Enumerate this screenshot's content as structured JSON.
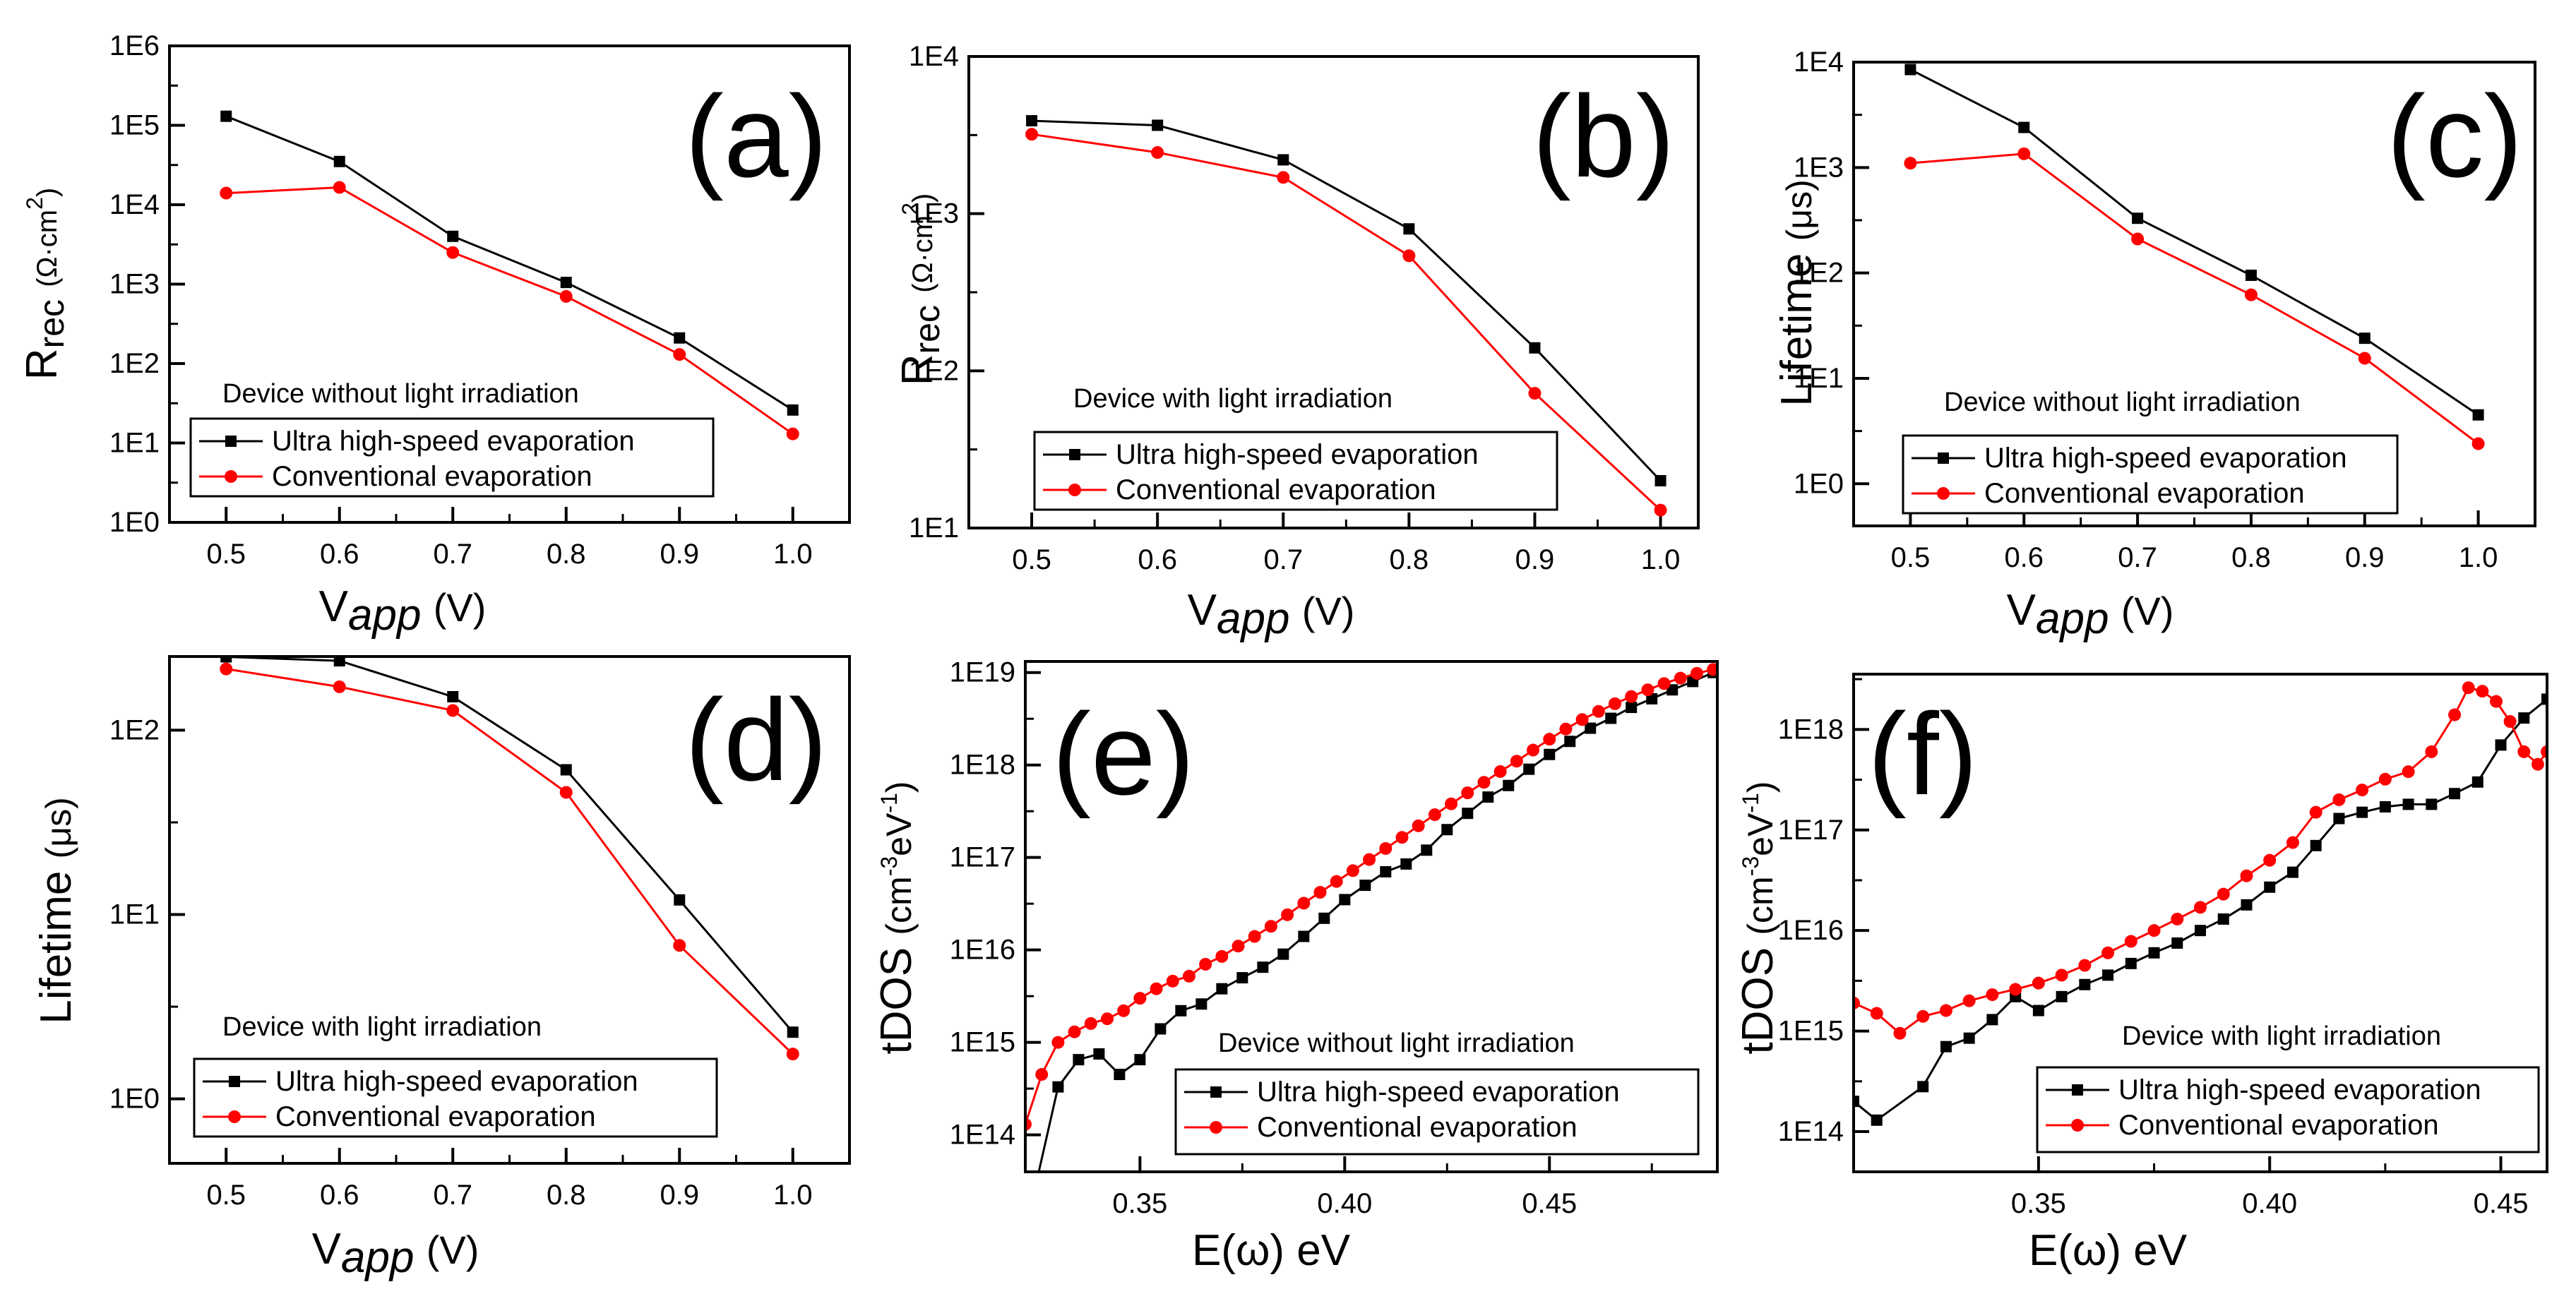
{
  "colors": {
    "ultra": "#000000",
    "conventional": "#ff0000",
    "axis": "#000000"
  },
  "chart_data": [
    {
      "type": "line",
      "panel": "(a)",
      "log_y": true,
      "ylim_exp": [
        0,
        6
      ],
      "y_tick_exps": [
        0,
        1,
        2,
        3,
        4,
        5,
        6
      ],
      "y_tick_labels": [
        "1E0",
        "1E1",
        "1E2",
        "1E3",
        "1E4",
        "1E5",
        "1E6"
      ],
      "xlim": [
        0.45,
        1.05
      ],
      "x_ticks": [
        0.5,
        0.6,
        0.7,
        0.8,
        0.9,
        1.0
      ],
      "x_tick_labels": [
        "0.5",
        "0.6",
        "0.7",
        "0.8",
        "0.9",
        "1.0"
      ],
      "ylabel_main": "R",
      "ylabel_sub": "rec",
      "ylabel_unit": "(Ω·cm",
      "ylabel_sup": "2",
      "ylabel_close": ")",
      "xlabel_main": "V",
      "xlabel_sub": "app",
      "xlabel_unit": "(V)",
      "annotation": "Device without light irradiation",
      "series": [
        {
          "name": "Ultra high-speed evaporation",
          "key": "ultra",
          "marker": "square",
          "x": [
            0.5,
            0.6,
            0.7,
            0.8,
            0.9,
            1.0
          ],
          "y": [
            130000,
            35000,
            4000,
            1050,
            210,
            26
          ]
        },
        {
          "name": "Conventional evaporation",
          "key": "conventional",
          "marker": "circle",
          "x": [
            0.5,
            0.6,
            0.7,
            0.8,
            0.9,
            1.0
          ],
          "y": [
            14000,
            16500,
            2500,
            700,
            130,
            13
          ]
        }
      ]
    },
    {
      "type": "line",
      "panel": "(b)",
      "log_y": true,
      "ylim_exp": [
        1,
        4
      ],
      "y_tick_exps": [
        1,
        2,
        3,
        4
      ],
      "y_tick_labels": [
        "1E1",
        "1E2",
        "1E3",
        "1E4"
      ],
      "xlim": [
        0.45,
        1.03
      ],
      "x_ticks": [
        0.5,
        0.6,
        0.7,
        0.8,
        0.9,
        1.0
      ],
      "x_tick_labels": [
        "0.5",
        "0.6",
        "0.7",
        "0.8",
        "0.9",
        "1.0"
      ],
      "ylabel_main": "R",
      "ylabel_sub": "rec",
      "ylabel_unit": "(Ω·cm",
      "ylabel_sup": "2",
      "ylabel_close": ")",
      "xlabel_main": "V",
      "xlabel_sub": "app",
      "xlabel_unit": "(V)",
      "annotation": "Device with light irradiation",
      "series": [
        {
          "name": "Ultra high-speed evaporation",
          "key": "ultra",
          "marker": "square",
          "x": [
            0.5,
            0.6,
            0.7,
            0.8,
            0.9,
            1.0
          ],
          "y": [
            3900,
            3650,
            2200,
            800,
            140,
            20
          ]
        },
        {
          "name": "Conventional evaporation",
          "key": "conventional",
          "marker": "circle",
          "x": [
            0.5,
            0.6,
            0.7,
            0.8,
            0.9,
            1.0
          ],
          "y": [
            3200,
            2450,
            1700,
            540,
            72,
            13
          ]
        }
      ]
    },
    {
      "type": "line",
      "panel": "(c)",
      "log_y": true,
      "ylim_exp": [
        -0.4,
        4
      ],
      "y_tick_exps": [
        0,
        1,
        2,
        3,
        4
      ],
      "y_tick_labels": [
        "1E0",
        "1E1",
        "1E2",
        "1E3",
        "1E4"
      ],
      "xlim": [
        0.45,
        1.05
      ],
      "x_ticks": [
        0.5,
        0.6,
        0.7,
        0.8,
        0.9,
        1.0
      ],
      "x_tick_labels": [
        "0.5",
        "0.6",
        "0.7",
        "0.8",
        "0.9",
        "1.0"
      ],
      "ylabel_main": "Lifetime",
      "ylabel_sub": "",
      "ylabel_unit": "(μs)",
      "ylabel_sup": "",
      "ylabel_close": "",
      "xlabel_main": "V",
      "xlabel_sub": "app",
      "xlabel_unit": "(V)",
      "annotation": "Device without light irradiation",
      "series": [
        {
          "name": "Ultra high-speed evaporation",
          "key": "ultra",
          "marker": "square",
          "x": [
            0.5,
            0.6,
            0.7,
            0.8,
            0.9,
            1.0
          ],
          "y": [
            8500,
            2400,
            330,
            95,
            24,
            4.5
          ]
        },
        {
          "name": "Conventional evaporation",
          "key": "conventional",
          "marker": "circle",
          "x": [
            0.5,
            0.6,
            0.7,
            0.8,
            0.9,
            1.0
          ],
          "y": [
            1100,
            1350,
            210,
            62,
            15.5,
            2.4
          ]
        }
      ]
    },
    {
      "type": "line",
      "panel": "(d)",
      "log_y": true,
      "ylim_exp": [
        -0.35,
        2.4
      ],
      "y_tick_exps": [
        0,
        1,
        2
      ],
      "y_tick_labels": [
        "1E0",
        "1E1",
        "1E2"
      ],
      "xlim": [
        0.45,
        1.05
      ],
      "x_ticks": [
        0.5,
        0.6,
        0.7,
        0.8,
        0.9,
        1.0
      ],
      "x_tick_labels": [
        "0.5",
        "0.6",
        "0.7",
        "0.8",
        "0.9",
        "1.0"
      ],
      "ylabel_main": "Lifetime",
      "ylabel_sub": "",
      "ylabel_unit": "(μs)",
      "ylabel_sup": "",
      "ylabel_close": "",
      "xlabel_main": "V",
      "xlabel_sub": "app",
      "xlabel_unit": "(V)",
      "annotation": "Device with light irradiation",
      "series": [
        {
          "name": "Ultra high-speed evaporation",
          "key": "ultra",
          "marker": "square",
          "x": [
            0.5,
            0.6,
            0.7,
            0.8,
            0.9,
            1.0
          ],
          "y": [
            250,
            238,
            152,
            61,
            12,
            2.3
          ]
        },
        {
          "name": "Conventional evaporation",
          "key": "conventional",
          "marker": "circle",
          "x": [
            0.5,
            0.6,
            0.7,
            0.8,
            0.9,
            1.0
          ],
          "y": [
            215,
            172,
            128,
            46,
            6.8,
            1.75
          ]
        }
      ]
    },
    {
      "type": "line",
      "panel": "(e)",
      "log_y": true,
      "ylim_exp": [
        13.6,
        19.12
      ],
      "y_tick_exps": [
        14,
        15,
        16,
        17,
        18,
        19
      ],
      "y_tick_labels": [
        "1E14",
        "1E15",
        "1E16",
        "1E17",
        "1E18",
        "1E19"
      ],
      "xlim": [
        0.322,
        0.491
      ],
      "x_ticks": [
        0.35,
        0.4,
        0.45
      ],
      "x_tick_labels": [
        "0.35",
        "0.40",
        "0.45"
      ],
      "ylabel_main": "tDOS",
      "ylabel_sub": "",
      "ylabel_unit": "(cm",
      "ylabel_sup": "-3",
      "ylabel_unit2": "eV",
      "ylabel_sup2": "-1",
      "ylabel_close": ")",
      "xlabel_main": "E(ω) eV",
      "xlabel_sub": "",
      "xlabel_unit": "",
      "annotation": "Device without light irradiation",
      "series": [
        {
          "name": "Ultra high-speed evaporation",
          "key": "ultra",
          "marker": "square",
          "x": [
            0.325,
            0.33,
            0.335,
            0.34,
            0.345,
            0.35,
            0.355,
            0.36,
            0.365,
            0.37,
            0.375,
            0.38,
            0.385,
            0.39,
            0.395,
            0.4,
            0.405,
            0.41,
            0.415,
            0.42,
            0.425,
            0.43,
            0.435,
            0.44,
            0.445,
            0.45,
            0.455,
            0.46,
            0.465,
            0.47,
            0.475,
            0.48,
            0.485,
            0.49
          ],
          "y": [
            35000000000000.0,
            330000000000000.0,
            650000000000000.0,
            750000000000000.0,
            450000000000000.0,
            650000000000000.0,
            1400000000000000.0,
            2200000000000000.0,
            2600000000000000.0,
            3800000000000000.0,
            5000000000000000.0,
            6500000000000000.0,
            9000000000000000.0,
            1.4e+16,
            2.2e+16,
            3.5e+16,
            5e+16,
            7e+16,
            8.5e+16,
            1.2e+17,
            2e+17,
            3e+17,
            4.5e+17,
            6e+17,
            9e+17,
            1.3e+18,
            1.8e+18,
            2.5e+18,
            3.2e+18,
            4.2e+18,
            5.2e+18,
            6.5e+18,
            8e+18,
            1e+19
          ]
        },
        {
          "name": "Conventional evaporation",
          "key": "conventional",
          "marker": "circle",
          "x": [
            0.322,
            0.326,
            0.33,
            0.334,
            0.338,
            0.342,
            0.346,
            0.35,
            0.354,
            0.358,
            0.362,
            0.366,
            0.37,
            0.374,
            0.378,
            0.382,
            0.386,
            0.39,
            0.394,
            0.398,
            0.402,
            0.406,
            0.41,
            0.414,
            0.418,
            0.422,
            0.426,
            0.43,
            0.434,
            0.438,
            0.442,
            0.446,
            0.45,
            0.454,
            0.458,
            0.462,
            0.466,
            0.47,
            0.474,
            0.478,
            0.482,
            0.486,
            0.49
          ],
          "y": [
            130000000000000.0,
            450000000000000.0,
            1000000000000000.0,
            1300000000000000.0,
            1600000000000000.0,
            1800000000000000.0,
            2200000000000000.0,
            3000000000000000.0,
            3800000000000000.0,
            4600000000000000.0,
            5200000000000000.0,
            7000000000000000.0,
            8500000000000000.0,
            1.1e+16,
            1.4e+16,
            1.8e+16,
            2.4e+16,
            3.2e+16,
            4.2e+16,
            5.5e+16,
            7.2e+16,
            9.5e+16,
            1.25e+17,
            1.65e+17,
            2.2e+17,
            2.9e+17,
            3.8e+17,
            5e+17,
            6.5e+17,
            8.5e+17,
            1.1e+18,
            1.45e+18,
            1.9e+18,
            2.45e+18,
            3.1e+18,
            3.8e+18,
            4.6e+18,
            5.5e+18,
            6.5e+18,
            7.6e+18,
            8.7e+18,
            9.8e+18,
            1.08e+19
          ]
        }
      ]
    },
    {
      "type": "line",
      "panel": "(f)",
      "log_y": true,
      "ylim_exp": [
        13.6,
        18.55
      ],
      "y_tick_exps": [
        14,
        15,
        16,
        17,
        18
      ],
      "y_tick_labels": [
        "1E14",
        "1E15",
        "1E16",
        "1E17",
        "1E18"
      ],
      "xlim": [
        0.31,
        0.46
      ],
      "x_ticks": [
        0.35,
        0.4,
        0.45
      ],
      "x_tick_labels": [
        "0.35",
        "0.40",
        "0.45"
      ],
      "ylabel_main": "tDOS",
      "ylabel_sub": "",
      "ylabel_unit": "(cm",
      "ylabel_sup": "-3",
      "ylabel_unit2": "eV",
      "ylabel_sup2": "-1",
      "ylabel_close": ")",
      "xlabel_main": "E(ω) eV",
      "xlabel_sub": "",
      "xlabel_unit": "",
      "annotation": "Device with light irradiation",
      "series": [
        {
          "name": "Ultra high-speed evaporation",
          "key": "ultra",
          "marker": "square",
          "x": [
            0.31,
            0.315,
            0.325,
            0.33,
            0.335,
            0.34,
            0.345,
            0.35,
            0.355,
            0.36,
            0.365,
            0.37,
            0.375,
            0.38,
            0.385,
            0.39,
            0.395,
            0.4,
            0.405,
            0.41,
            0.415,
            0.42,
            0.425,
            0.43,
            0.435,
            0.44,
            0.445,
            0.45,
            0.455,
            0.46
          ],
          "y": [
            200000000000000.0,
            130000000000000.0,
            280000000000000.0,
            700000000000000.0,
            850000000000000.0,
            1300000000000000.0,
            2200000000000000.0,
            1600000000000000.0,
            2200000000000000.0,
            2900000000000000.0,
            3600000000000000.0,
            4700000000000000.0,
            6000000000000000.0,
            7500000000000000.0,
            1e+16,
            1.3e+16,
            1.8e+16,
            2.7e+16,
            3.8e+16,
            7e+16,
            1.3e+17,
            1.5e+17,
            1.7e+17,
            1.8e+17,
            1.8e+17,
            2.3e+17,
            3e+17,
            7e+17,
            1.3e+18,
            2e+18
          ]
        },
        {
          "name": "Conventional evaporation",
          "key": "conventional",
          "marker": "circle",
          "x": [
            0.31,
            0.315,
            0.32,
            0.325,
            0.33,
            0.335,
            0.34,
            0.345,
            0.35,
            0.355,
            0.36,
            0.365,
            0.37,
            0.375,
            0.38,
            0.385,
            0.39,
            0.395,
            0.4,
            0.405,
            0.41,
            0.415,
            0.42,
            0.425,
            0.43,
            0.435,
            0.44,
            0.443,
            0.446,
            0.449,
            0.452,
            0.455,
            0.458,
            0.46
          ],
          "y": [
            1900000000000000.0,
            1500000000000000.0,
            950000000000000.0,
            1400000000000000.0,
            1600000000000000.0,
            2000000000000000.0,
            2300000000000000.0,
            2600000000000000.0,
            3000000000000000.0,
            3600000000000000.0,
            4500000000000000.0,
            6000000000000000.0,
            7800000000000000.0,
            1e+16,
            1.3e+16,
            1.7e+16,
            2.3e+16,
            3.5e+16,
            5e+16,
            7.5e+16,
            1.5e+17,
            2e+17,
            2.5e+17,
            3.2e+17,
            3.8e+17,
            6e+17,
            1.4e+18,
            2.6e+18,
            2.4e+18,
            1.9e+18,
            1.2e+18,
            6e+17,
            4.5e+17,
            6e+17
          ]
        }
      ]
    }
  ]
}
